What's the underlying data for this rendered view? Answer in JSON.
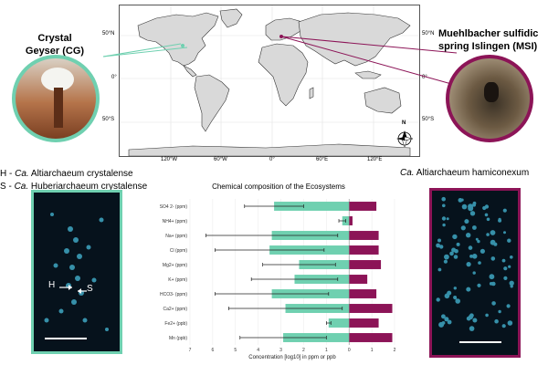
{
  "map": {
    "lat_labels_left": [
      "50°N",
      "0°",
      "50°S"
    ],
    "lat_labels_right": [
      "50°N",
      "0°",
      "50°S"
    ],
    "lon_labels": [
      "120°W",
      "60°W",
      "0°",
      "60°E",
      "120°E"
    ],
    "north_label": "N"
  },
  "sites": {
    "cg": {
      "title_line1": "Crystal",
      "title_line2": "Geyser (CG)",
      "color": "#6fd0b0"
    },
    "msi": {
      "title_line1": "Muehlbacher sulfidic",
      "title_line2": "spring Islingen (MSI)",
      "color": "#8c1457"
    }
  },
  "legend": {
    "left": [
      {
        "prefix": "H - ",
        "genus": "Ca.",
        "species": "Altiarchaeum crystalense"
      },
      {
        "prefix": "S - ",
        "genus": "Ca.",
        "species": "Huberiarchaeum crystalense"
      }
    ],
    "right": {
      "genus": "Ca.",
      "species": "Altiarchaeum hamiconexum"
    }
  },
  "micrographs": {
    "left": {
      "label_h": "H",
      "label_s": "S"
    }
  },
  "chart_data": {
    "type": "bar",
    "title": "Chemical composition of the Ecosystems",
    "xlabel": "Concentration [log10] in ppm or ppb",
    "x_ticks": [
      "7",
      "6",
      "5",
      "4",
      "3",
      "2",
      "1",
      "0",
      "1",
      "2"
    ],
    "categories": [
      "SO4 2- (ppm)",
      "NH4+ (ppm)",
      "Na+ (ppm)",
      "Cl (ppm)",
      "Mg2+ (ppm)",
      "K+ (ppm)",
      "HCO3- (ppm)",
      "Ca2+ (ppm)",
      "Fe2+ (ppb)",
      "Mn (ppb)"
    ],
    "series": [
      {
        "name": "CG",
        "color": "#6fd0b0",
        "values": [
          3.3,
          0.3,
          3.4,
          3.5,
          2.2,
          2.4,
          3.4,
          2.8,
          0.9,
          2.9
        ],
        "errors": [
          1.3,
          0.15,
          2.9,
          2.4,
          1.6,
          1.9,
          2.5,
          2.5,
          0.1,
          1.9
        ]
      },
      {
        "name": "MSI",
        "color": "#8c1457",
        "values": [
          1.2,
          0.15,
          1.3,
          1.3,
          1.4,
          0.8,
          1.2,
          1.9,
          1.3,
          1.9
        ]
      }
    ]
  }
}
